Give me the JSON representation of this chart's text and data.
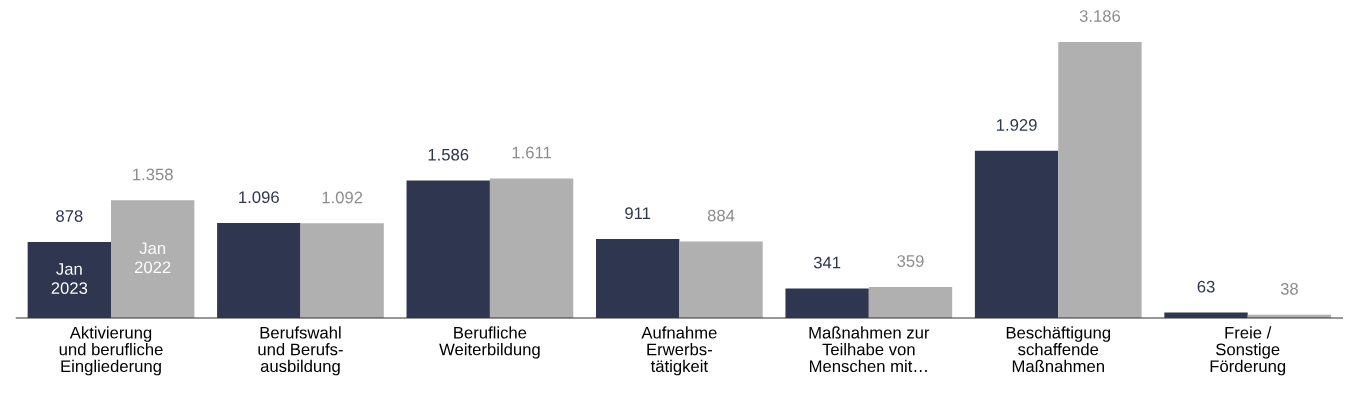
{
  "chart_data": {
    "type": "bar",
    "categories": [
      "Aktivierung\nund berufliche\nEingliederung",
      "Berufswahl\nund Berufs-\nausbildung",
      "Berufliche\nWeiterbildung",
      "Aufnahme\nErwerbs-\ntätigkeit",
      "Maßnahmen zur\nTeilhabe von\nMenschen mit…",
      "Beschäftigung\nschaffende\nMaßnahmen",
      "Freie /\nSonstige\nFörderung"
    ],
    "series": [
      {
        "name": "Jan 2023",
        "color": "#2e3650",
        "values": [
          878,
          1096,
          1586,
          911,
          341,
          1929,
          63
        ],
        "value_labels": [
          "878",
          "1.096",
          "1.586",
          "911",
          "341",
          "1.929",
          "63"
        ]
      },
      {
        "name": "Jan 2022",
        "color": "#b0b0b0",
        "values": [
          1358,
          1092,
          1611,
          884,
          359,
          3186,
          38
        ],
        "value_labels": [
          "1.358",
          "1.092",
          "1.611",
          "884",
          "359",
          "3.186",
          "38"
        ]
      }
    ],
    "tick_labels": "x",
    "grid": false,
    "legend": false
  }
}
